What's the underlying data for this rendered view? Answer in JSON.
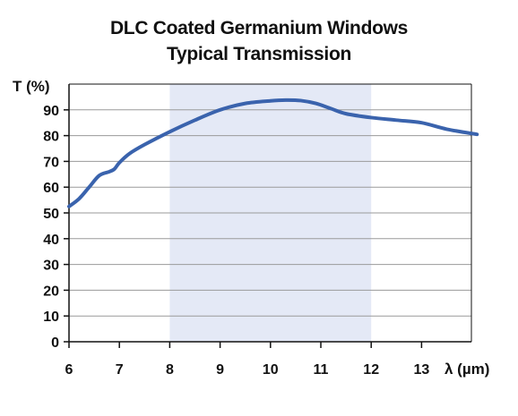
{
  "chart_data": {
    "type": "line",
    "title": "DLC Coated Germanium Windows",
    "subtitle": "Typical Transmission",
    "ylabel": "T (%)",
    "xlabel": "λ (µm)",
    "xlim": [
      6,
      14.1
    ],
    "ylim": [
      0,
      100
    ],
    "x_ticks": [
      6,
      7,
      8,
      9,
      10,
      11,
      12,
      13
    ],
    "y_ticks": [
      0,
      10,
      20,
      30,
      40,
      50,
      60,
      70,
      80,
      90
    ],
    "grid": true,
    "shaded_region": [
      8,
      12
    ],
    "series": [
      {
        "x": [
          6.0,
          6.2,
          6.4,
          6.6,
          6.8,
          6.9,
          7.0,
          7.2,
          7.5,
          8.0,
          8.5,
          9.0,
          9.5,
          10.0,
          10.3,
          10.6,
          10.9,
          11.2,
          11.5,
          12.0,
          12.5,
          13.0,
          13.5,
          14.1
        ],
        "y": [
          52.5,
          55.5,
          60,
          64.5,
          66,
          67,
          69.5,
          73,
          76.5,
          81.5,
          86,
          90,
          92.5,
          93.5,
          93.8,
          93.6,
          92.5,
          90.5,
          88.5,
          87,
          86,
          85,
          82.5,
          80.5
        ]
      }
    ],
    "colors": {
      "line": "#3a63ad",
      "shade": "#e4e9f6",
      "grid": "#9a9a9a",
      "axis": "#111111"
    }
  }
}
